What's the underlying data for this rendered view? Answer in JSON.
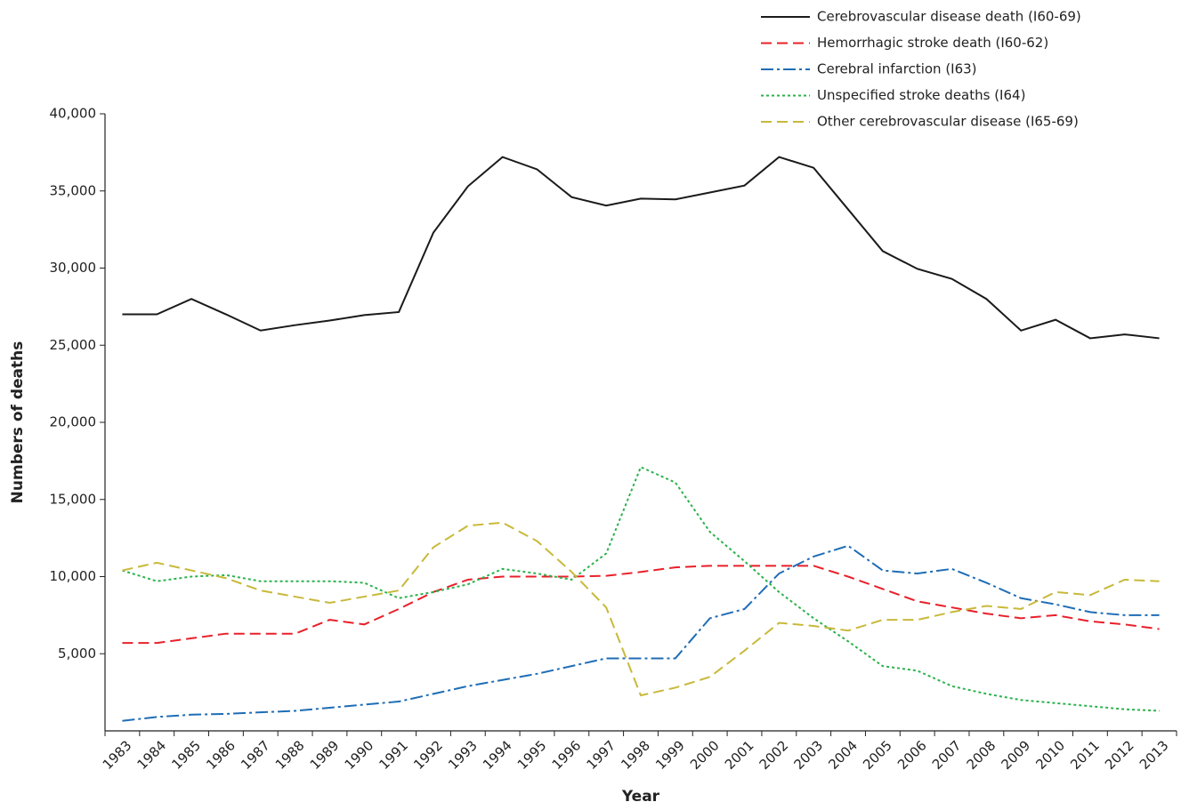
{
  "chart_data": {
    "type": "line",
    "x_label": "Year",
    "y_label": "Numbers of deaths",
    "categories": [
      "1983",
      "1984",
      "1985",
      "1986",
      "1987",
      "1988",
      "1989",
      "1990",
      "1991",
      "1992",
      "1993",
      "1994",
      "1995",
      "1996",
      "1997",
      "1998",
      "1999",
      "2000",
      "2001",
      "2002",
      "2003",
      "2004",
      "2005",
      "2006",
      "2007",
      "2008",
      "2009",
      "2010",
      "2011",
      "2012",
      "2013"
    ],
    "ylim": [
      0,
      40000
    ],
    "yticks": [
      {
        "value": 5000,
        "label": "5,000"
      },
      {
        "value": 10000,
        "label": "10,000"
      },
      {
        "value": 15000,
        "label": "15,000"
      },
      {
        "value": 20000,
        "label": "20,000"
      },
      {
        "value": 25000,
        "label": "25,000"
      },
      {
        "value": 30000,
        "label": "30,000"
      },
      {
        "value": 35000,
        "label": "35,000"
      },
      {
        "value": 40000,
        "label": "40,000"
      }
    ],
    "legend": "top-right",
    "series": [
      {
        "name": "Cerebrovascular disease death (I60-69)",
        "color": "#1a1a1a",
        "linestyle": "solid",
        "values": [
          27000,
          27000,
          28000,
          27000,
          25950,
          26300,
          26600,
          26950,
          27150,
          32300,
          35300,
          37200,
          36400,
          34600,
          34050,
          34500,
          34450,
          34900,
          35350,
          37200,
          36500,
          33800,
          31100,
          29950,
          29300,
          28000,
          25950,
          26650,
          25450,
          25700,
          25450
        ]
      },
      {
        "name": "Hemorrhagic stroke death (I60-62)",
        "color": "#e8202a",
        "linestyle": "dashed",
        "values": [
          5700,
          5700,
          6000,
          6300,
          6300,
          6300,
          7200,
          6900,
          7900,
          9000,
          9800,
          10000,
          10000,
          10000,
          10050,
          10300,
          10600,
          10700,
          10700,
          10700,
          10700,
          10000,
          9200,
          8400,
          8000,
          7600,
          7300,
          7500,
          7100,
          6900,
          6600
        ]
      },
      {
        "name": "Cerebral infarction (I63)",
        "color": "#1f6db5",
        "linestyle": "dashdot",
        "values": [
          650,
          900,
          1050,
          1100,
          1200,
          1300,
          1500,
          1700,
          1900,
          2400,
          2900,
          3300,
          3700,
          4200,
          4700,
          4700,
          4700,
          7300,
          7900,
          10200,
          11300,
          12000,
          10400,
          10200,
          10500,
          9600,
          8600,
          8200,
          7700,
          7500,
          7500
        ]
      },
      {
        "name": "Unspecified stroke deaths (I64)",
        "color": "#2bb24c",
        "linestyle": "dotted",
        "values": [
          10400,
          9700,
          10000,
          10100,
          9700,
          9700,
          9700,
          9600,
          8600,
          9000,
          9500,
          10500,
          10200,
          9800,
          11500,
          17100,
          16100,
          12900,
          11000,
          9000,
          7300,
          5800,
          4200,
          3900,
          2900,
          2400,
          2000,
          1800,
          1600,
          1400,
          1300
        ]
      },
      {
        "name": "Other cerebrovascular disease (I65-69)",
        "color": "#c8b93a",
        "linestyle": "dashed",
        "values": [
          10400,
          10900,
          10400,
          9900,
          9100,
          8700,
          8300,
          8700,
          9100,
          11900,
          13300,
          13500,
          12300,
          10300,
          8000,
          2300,
          2800,
          3500,
          5200,
          7000,
          6800,
          6500,
          7200,
          7200,
          7700,
          8100,
          7900,
          9000,
          8800,
          9800,
          9700
        ]
      }
    ]
  }
}
